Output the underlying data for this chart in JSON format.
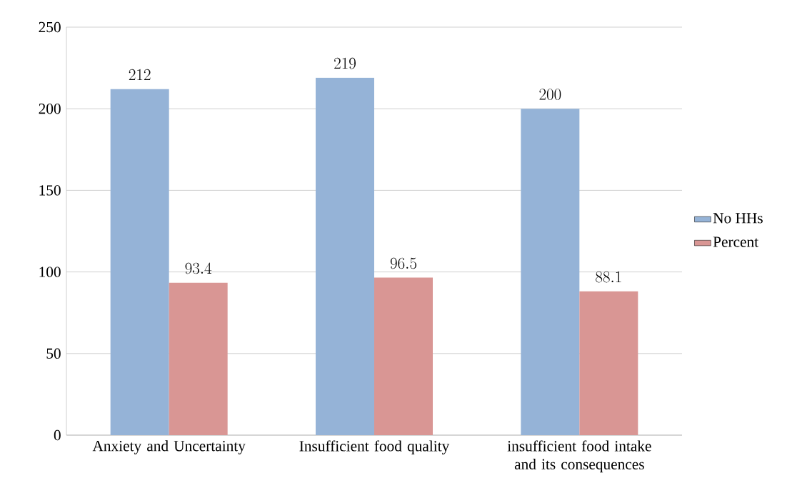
{
  "chart_data": {
    "type": "bar",
    "categories": [
      "Anxiety and Uncertainty",
      "Insufficient food quality",
      "insufficient food intake and its consequences"
    ],
    "series": [
      {
        "name": "No HHs",
        "color": "#95b3d7",
        "values": [
          212,
          219,
          200
        ]
      },
      {
        "name": "Percent",
        "color": "#d99694",
        "values": [
          93.4,
          96.5,
          88.1
        ]
      }
    ],
    "ylim": [
      0,
      250
    ],
    "yticks": [
      0,
      50,
      100,
      150,
      200,
      250
    ],
    "grid": "y",
    "legend": "right",
    "data_labels": true
  }
}
